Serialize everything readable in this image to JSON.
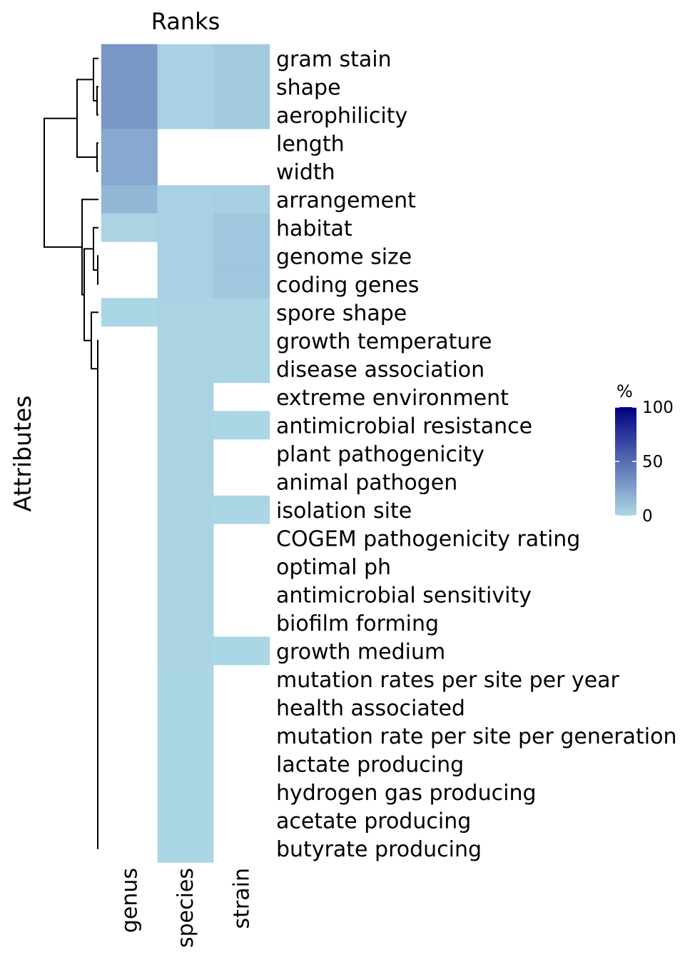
{
  "chart_data": {
    "type": "heatmap",
    "title": "Ranks",
    "ylabel": "Attributes",
    "columns": [
      "genus",
      "species",
      "strain"
    ],
    "rows": [
      {
        "label": "gram stain",
        "values": [
          30,
          3,
          6
        ]
      },
      {
        "label": "shape",
        "values": [
          30,
          3,
          6
        ]
      },
      {
        "label": "aerophilicity",
        "values": [
          30,
          3,
          6
        ]
      },
      {
        "label": "length",
        "values": [
          22,
          null,
          null
        ]
      },
      {
        "label": "width",
        "values": [
          22,
          null,
          null
        ]
      },
      {
        "label": "arrangement",
        "values": [
          15,
          3,
          4
        ]
      },
      {
        "label": "habitat",
        "values": [
          2,
          3,
          8
        ]
      },
      {
        "label": "genome size",
        "values": [
          null,
          3,
          8
        ]
      },
      {
        "label": "coding genes",
        "values": [
          null,
          3,
          8
        ]
      },
      {
        "label": "spore shape",
        "values": [
          1,
          2,
          2
        ]
      },
      {
        "label": "growth temperature",
        "values": [
          null,
          2,
          2
        ]
      },
      {
        "label": "disease association",
        "values": [
          null,
          2,
          2
        ]
      },
      {
        "label": "extreme environment",
        "values": [
          null,
          2,
          null
        ]
      },
      {
        "label": "antimicrobial resistance",
        "values": [
          null,
          2,
          1
        ]
      },
      {
        "label": "plant pathogenicity",
        "values": [
          null,
          2,
          null
        ]
      },
      {
        "label": "animal pathogen",
        "values": [
          null,
          2,
          null
        ]
      },
      {
        "label": "isolation site",
        "values": [
          null,
          2,
          1
        ]
      },
      {
        "label": "COGEM pathogenicity rating",
        "values": [
          null,
          2,
          null
        ]
      },
      {
        "label": "optimal ph",
        "values": [
          null,
          2,
          null
        ]
      },
      {
        "label": "antimicrobial sensitivity",
        "values": [
          null,
          2,
          null
        ]
      },
      {
        "label": "biofilm forming",
        "values": [
          null,
          2,
          null
        ]
      },
      {
        "label": "growth medium",
        "values": [
          null,
          2,
          1
        ]
      },
      {
        "label": "mutation rates per site per year",
        "values": [
          null,
          1,
          null
        ]
      },
      {
        "label": "health associated",
        "values": [
          null,
          1,
          null
        ]
      },
      {
        "label": "mutation rate per site per generation",
        "values": [
          null,
          1,
          null
        ]
      },
      {
        "label": "lactate producing",
        "values": [
          null,
          1,
          null
        ]
      },
      {
        "label": "hydrogen gas producing",
        "values": [
          null,
          1,
          null
        ]
      },
      {
        "label": "acetate producing",
        "values": [
          null,
          1,
          null
        ]
      },
      {
        "label": "butyrate producing",
        "values": [
          null,
          1,
          null
        ]
      }
    ],
    "legend": {
      "title": "%",
      "ticks": [
        0,
        50,
        100
      ],
      "range": [
        0,
        100
      ],
      "placement": "right",
      "low_color": "#ADD8E6",
      "high_color": "#000080"
    },
    "dendrogram": true
  }
}
